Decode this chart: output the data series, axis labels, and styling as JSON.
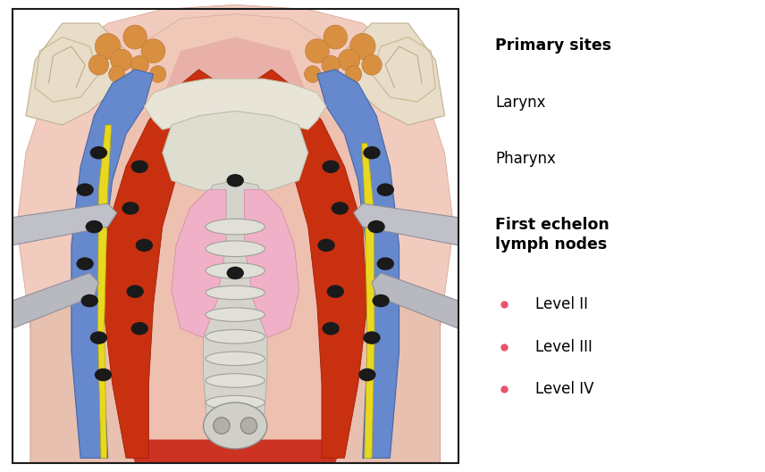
{
  "figure_width": 8.56,
  "figure_height": 5.29,
  "dpi": 100,
  "background_color": "#ffffff",
  "border_color": "#1a1a1a",
  "primary_sites_title": "Primary sites",
  "primary_sites_items": [
    "Larynx",
    "Pharynx"
  ],
  "first_echelon_title": "First echelon\nlymph nodes",
  "level_items": [
    "Level II",
    "Level III",
    "Level IV"
  ],
  "dot_color": "#e8546a",
  "title_fontsize": 12.5,
  "item_fontsize": 12,
  "text_color": "#000000",
  "skin_light": "#f5cfc0",
  "skin_mid": "#e8b8a8",
  "skin_pink": "#e8c0b8",
  "muscle_red": "#c83010",
  "vein_blue": "#5577cc",
  "yellow_nerve": "#e8d020",
  "bone_offwhite": "#e0ddd0",
  "pink_thyroid": "#f0a0b8",
  "gray_trachea": "#c8c8c0",
  "fat_orange": "#d89040",
  "silver_retractor": "#b8b8c0",
  "node_black": "#1a1a1a",
  "red_bottom": "#cc3322"
}
